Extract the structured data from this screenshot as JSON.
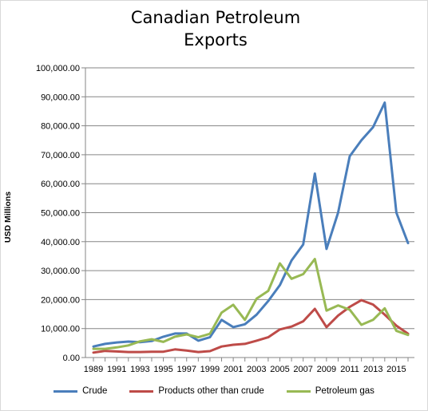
{
  "chart_data": {
    "type": "line",
    "title_lines": [
      "Canadian Petroleum",
      "Exports"
    ],
    "ylabel": "USD Millions",
    "xlabel": "",
    "ylim": [
      0,
      100000
    ],
    "yticks": [
      "0.00",
      "10,000.00",
      "20,000.00",
      "30,000.00",
      "40,000.00",
      "50,000.00",
      "60,000.00",
      "70,000.00",
      "80,000.00",
      "90,000.00",
      "100,000.00"
    ],
    "x": [
      1989,
      1990,
      1991,
      1992,
      1993,
      1994,
      1995,
      1996,
      1997,
      1998,
      1999,
      2000,
      2001,
      2002,
      2003,
      2004,
      2005,
      2006,
      2007,
      2008,
      2009,
      2010,
      2011,
      2012,
      2013,
      2014,
      2015,
      2016
    ],
    "xtick_labels": [
      "1989",
      "1991",
      "1993",
      "1995",
      "1997",
      "1999",
      "2001",
      "2003",
      "2005",
      "2007",
      "2009",
      "2011",
      "2013",
      "2015"
    ],
    "grid": true,
    "legend_position": "bottom",
    "series": [
      {
        "name": "Crude",
        "color": "#4a7ebb",
        "values": [
          3800,
          4700,
          5200,
          5500,
          5300,
          5700,
          7200,
          8300,
          8300,
          5800,
          7000,
          13000,
          10500,
          11500,
          14800,
          19500,
          25000,
          33500,
          39000,
          63500,
          37500,
          50000,
          69500,
          75000,
          79500,
          88000,
          50000,
          39500
        ]
      },
      {
        "name": "Products other than crude",
        "color": "#be4b48",
        "values": [
          1700,
          2300,
          2100,
          1900,
          1900,
          2000,
          2000,
          2800,
          2400,
          1900,
          2200,
          3800,
          4400,
          4700,
          5800,
          7000,
          9700,
          10700,
          12500,
          16800,
          10500,
          14500,
          17500,
          19800,
          18300,
          14800,
          11000,
          8200
        ]
      },
      {
        "name": "Petroleum gas",
        "color": "#98b954",
        "values": [
          3000,
          3000,
          3500,
          4200,
          5600,
          6300,
          5400,
          7200,
          8000,
          7000,
          8200,
          15500,
          18200,
          13000,
          20300,
          23000,
          32500,
          27200,
          28800,
          34000,
          16200,
          18000,
          16500,
          11300,
          13000,
          17000,
          9200,
          7800
        ]
      }
    ]
  }
}
